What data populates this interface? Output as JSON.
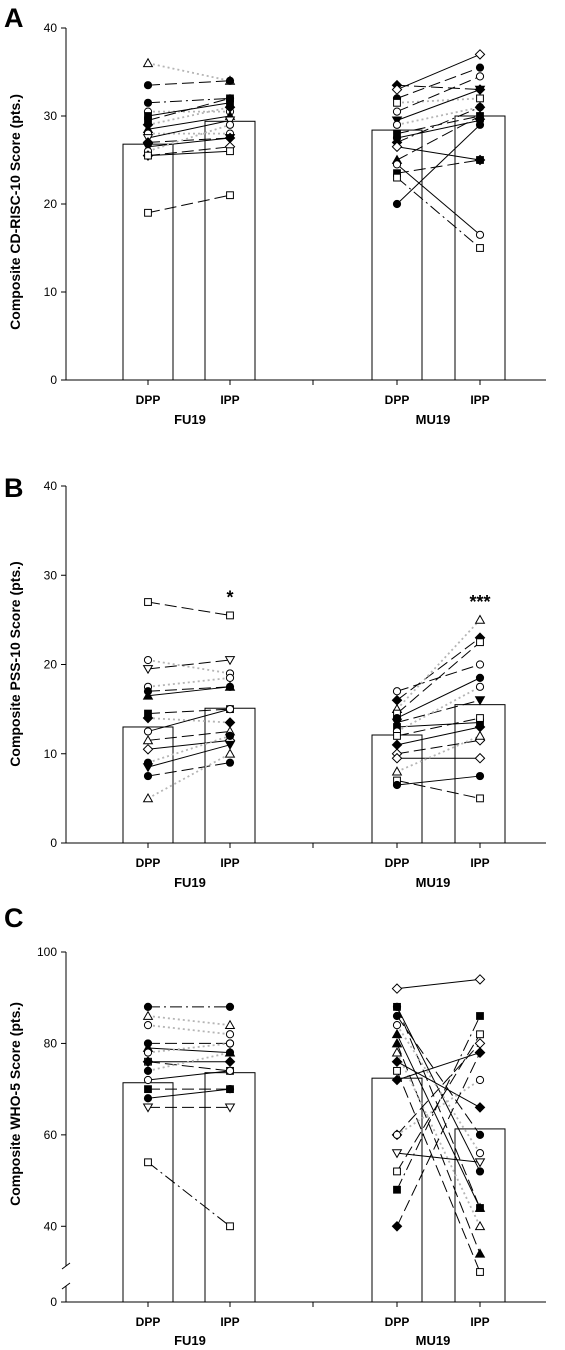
{
  "panels": [
    {
      "letter": "A",
      "ylabel": "Composite CD-RISC-10 Score (pts.)",
      "ylim": [
        0,
        40
      ],
      "yticks": [
        0,
        10,
        20,
        30,
        40
      ],
      "axis_break": false,
      "categories": [
        "DPP",
        "IPP",
        "DPP",
        "IPP"
      ],
      "groups": [
        "FU19",
        "MU19"
      ],
      "bars": [
        26.8,
        29.4,
        28.4,
        30.0
      ],
      "significance": [
        "",
        "",
        "",
        ""
      ],
      "fu_pairs": [
        {
          "pre": 36,
          "post": 34,
          "marker": "triangle-open",
          "line": "dotted"
        },
        {
          "pre": 33.5,
          "post": 34,
          "marker": "circle-filled",
          "line": "dashed"
        },
        {
          "pre": 31.5,
          "post": 32,
          "marker": "circle-filled",
          "line": "dashdot"
        },
        {
          "pre": 30.5,
          "post": 30.5,
          "marker": "circle-open",
          "line": "dotted"
        },
        {
          "pre": 30,
          "post": 31.5,
          "marker": "square-filled",
          "line": "solid"
        },
        {
          "pre": 29.5,
          "post": 32,
          "marker": "square-filled",
          "line": "dashed"
        },
        {
          "pre": 29,
          "post": 31,
          "marker": "diamond-filled",
          "line": "dotted"
        },
        {
          "pre": 28.5,
          "post": 30,
          "marker": "triangle-filled",
          "line": "solid"
        },
        {
          "pre": 28,
          "post": 28,
          "marker": "circle-open",
          "line": "dotted"
        },
        {
          "pre": 27.5,
          "post": 29.5,
          "marker": "triangle-down-open",
          "line": "solid"
        },
        {
          "pre": 27,
          "post": 27.5,
          "marker": "diamond-filled",
          "line": "dashed"
        },
        {
          "pre": 26.5,
          "post": 27.5,
          "marker": "triangle-down-filled",
          "line": "solid"
        },
        {
          "pre": 26,
          "post": 29,
          "marker": "circle-open",
          "line": "dotted"
        },
        {
          "pre": 25.5,
          "post": 26.5,
          "marker": "diamond-open",
          "line": "dashed"
        },
        {
          "pre": 25.5,
          "post": 26,
          "marker": "square-open",
          "line": "solid"
        },
        {
          "pre": 19,
          "post": 21,
          "marker": "square-open",
          "line": "dashed"
        }
      ],
      "mu_pairs": [
        {
          "pre": 33.5,
          "post": 33,
          "marker": "diamond-filled",
          "line": "dashed"
        },
        {
          "pre": 33,
          "post": 37,
          "marker": "diamond-open",
          "line": "solid"
        },
        {
          "pre": 32,
          "post": 35.5,
          "marker": "circle-filled",
          "line": "dashed"
        },
        {
          "pre": 31.5,
          "post": 32,
          "marker": "square-open",
          "line": "dotted"
        },
        {
          "pre": 30.5,
          "post": 34.5,
          "marker": "circle-open",
          "line": "dashed"
        },
        {
          "pre": 29.5,
          "post": 33,
          "marker": "triangle-down-filled",
          "line": "solid"
        },
        {
          "pre": 29,
          "post": 31,
          "marker": "circle-open",
          "line": "dotted"
        },
        {
          "pre": 28,
          "post": 30,
          "marker": "square-filled",
          "line": "dashed"
        },
        {
          "pre": 27.5,
          "post": 29.5,
          "marker": "circle-filled",
          "line": "solid"
        },
        {
          "pre": 27,
          "post": 31,
          "marker": "diamond-filled",
          "line": "dashdot"
        },
        {
          "pre": 26.5,
          "post": 25,
          "marker": "diamond-open",
          "line": "solid"
        },
        {
          "pre": 25,
          "post": 30,
          "marker": "triangle-filled",
          "line": "dashed"
        },
        {
          "pre": 24.5,
          "post": 16.5,
          "marker": "circle-open",
          "line": "solid"
        },
        {
          "pre": 23.5,
          "post": 25,
          "marker": "square-filled",
          "line": "dashed"
        },
        {
          "pre": 23,
          "post": 15,
          "marker": "square-open",
          "line": "dashdot"
        },
        {
          "pre": 20,
          "post": 29,
          "marker": "circle-filled",
          "line": "solid"
        }
      ]
    },
    {
      "letter": "B",
      "ylabel": "Composite PSS-10 Score (pts.)",
      "ylim": [
        0,
        40
      ],
      "yticks": [
        0,
        10,
        20,
        30,
        40
      ],
      "axis_break": false,
      "categories": [
        "DPP",
        "IPP",
        "DPP",
        "IPP"
      ],
      "groups": [
        "FU19",
        "MU19"
      ],
      "bars": [
        13.0,
        15.1,
        12.1,
        15.5
      ],
      "significance": [
        "",
        "*",
        "",
        "***"
      ],
      "fu_pairs": [
        {
          "pre": 27,
          "post": 25.5,
          "marker": "square-open",
          "line": "dashed"
        },
        {
          "pre": 20.5,
          "post": 19,
          "marker": "circle-open",
          "line": "dotted"
        },
        {
          "pre": 19.5,
          "post": 20.5,
          "marker": "triangle-down-open",
          "line": "dashed"
        },
        {
          "pre": 17.5,
          "post": 18.5,
          "marker": "circle-open",
          "line": "dotted"
        },
        {
          "pre": 17,
          "post": 17.5,
          "marker": "circle-filled",
          "line": "dashed"
        },
        {
          "pre": 16.5,
          "post": 17.5,
          "marker": "triangle-filled",
          "line": "solid"
        },
        {
          "pre": 14.5,
          "post": 15,
          "marker": "square-filled",
          "line": "dashed"
        },
        {
          "pre": 14,
          "post": 13.5,
          "marker": "diamond-filled",
          "line": "dotted"
        },
        {
          "pre": 12.5,
          "post": 15,
          "marker": "circle-open",
          "line": "solid"
        },
        {
          "pre": 11.5,
          "post": 12.5,
          "marker": "triangle-open",
          "line": "dashed"
        },
        {
          "pre": 10.5,
          "post": 11.5,
          "marker": "diamond-open",
          "line": "solid"
        },
        {
          "pre": 9,
          "post": 12,
          "marker": "circle-filled",
          "line": "dotted"
        },
        {
          "pre": 8.5,
          "post": 11,
          "marker": "triangle-down-filled",
          "line": "solid"
        },
        {
          "pre": 7.5,
          "post": 9,
          "marker": "circle-filled",
          "line": "dashed"
        },
        {
          "pre": 5,
          "post": 10,
          "marker": "triangle-open",
          "line": "dotted"
        }
      ],
      "mu_pairs": [
        {
          "pre": 17,
          "post": 20,
          "marker": "circle-open",
          "line": "dashed"
        },
        {
          "pre": 16,
          "post": 23,
          "marker": "diamond-filled",
          "line": "dashed"
        },
        {
          "pre": 15,
          "post": 25,
          "marker": "triangle-open",
          "line": "dotted"
        },
        {
          "pre": 14.5,
          "post": 22.5,
          "marker": "square-open",
          "line": "dashed"
        },
        {
          "pre": 14,
          "post": 18.5,
          "marker": "circle-filled",
          "line": "solid"
        },
        {
          "pre": 13.5,
          "post": 16,
          "marker": "triangle-down-filled",
          "line": "dashed"
        },
        {
          "pre": 13,
          "post": 13.5,
          "marker": "square-filled",
          "line": "solid"
        },
        {
          "pre": 12.5,
          "post": 17.5,
          "marker": "circle-open",
          "line": "dotted"
        },
        {
          "pre": 12,
          "post": 14,
          "marker": "square-open",
          "line": "dashed"
        },
        {
          "pre": 11,
          "post": 13,
          "marker": "diamond-filled",
          "line": "solid"
        },
        {
          "pre": 10,
          "post": 11.5,
          "marker": "diamond-open",
          "line": "dashed"
        },
        {
          "pre": 9.5,
          "post": 9.5,
          "marker": "diamond-open",
          "line": "solid"
        },
        {
          "pre": 8,
          "post": 12,
          "marker": "triangle-open",
          "line": "dotted"
        },
        {
          "pre": 7,
          "post": 5,
          "marker": "square-open",
          "line": "dashed"
        },
        {
          "pre": 6.5,
          "post": 7.5,
          "marker": "circle-filled",
          "line": "solid"
        }
      ]
    },
    {
      "letter": "C",
      "ylabel": "Composite WHO-5 Score (pts.)",
      "ylim": [
        0,
        100
      ],
      "yticks": [
        0,
        40,
        60,
        80,
        100
      ],
      "axis_break": true,
      "categories": [
        "DPP",
        "IPP",
        "DPP",
        "IPP"
      ],
      "groups": [
        "FU19",
        "MU19"
      ],
      "bars": [
        71.4,
        73.6,
        72.4,
        61.3
      ],
      "significance": [
        "",
        "",
        "",
        ""
      ],
      "fu_pairs": [
        {
          "pre": 88,
          "post": 88,
          "marker": "circle-filled",
          "line": "dashdot"
        },
        {
          "pre": 86,
          "post": 84,
          "marker": "triangle-open",
          "line": "dotted"
        },
        {
          "pre": 84,
          "post": 82,
          "marker": "circle-open",
          "line": "dotted"
        },
        {
          "pre": 80,
          "post": 80,
          "marker": "circle-filled",
          "line": "dashed"
        },
        {
          "pre": 79,
          "post": 78,
          "marker": "triangle-filled",
          "line": "solid"
        },
        {
          "pre": 78,
          "post": 80,
          "marker": "circle-open",
          "line": "dotted"
        },
        {
          "pre": 76,
          "post": 74,
          "marker": "square-open",
          "line": "dashed"
        },
        {
          "pre": 76,
          "post": 76,
          "marker": "diamond-filled",
          "line": "solid"
        },
        {
          "pre": 74,
          "post": 78,
          "marker": "circle-filled",
          "line": "dotted"
        },
        {
          "pre": 72,
          "post": 74,
          "marker": "circle-open",
          "line": "solid"
        },
        {
          "pre": 70,
          "post": 70,
          "marker": "square-filled",
          "line": "dashed"
        },
        {
          "pre": 68,
          "post": 70,
          "marker": "circle-filled",
          "line": "solid"
        },
        {
          "pre": 66,
          "post": 66,
          "marker": "triangle-down-open",
          "line": "dashed"
        },
        {
          "pre": 54,
          "post": 40,
          "marker": "square-open",
          "line": "dashdot"
        }
      ],
      "mu_pairs": [
        {
          "pre": 92,
          "post": 94,
          "marker": "diamond-open",
          "line": "solid"
        },
        {
          "pre": 88,
          "post": 44,
          "marker": "square-filled",
          "line": "dashed"
        },
        {
          "pre": 88,
          "post": 52,
          "marker": "circle-filled",
          "line": "solid"
        },
        {
          "pre": 86,
          "post": 60,
          "marker": "circle-filled",
          "line": "dashed"
        },
        {
          "pre": 84,
          "post": 56,
          "marker": "circle-open",
          "line": "dotted"
        },
        {
          "pre": 82,
          "post": 44,
          "marker": "triangle-filled",
          "line": "solid"
        },
        {
          "pre": 80,
          "post": 34,
          "marker": "triangle-filled",
          "line": "dashed"
        },
        {
          "pre": 78,
          "post": 40,
          "marker": "triangle-open",
          "line": "dotted"
        },
        {
          "pre": 76,
          "post": 66,
          "marker": "diamond-filled",
          "line": "solid"
        },
        {
          "pre": 74,
          "post": 30,
          "marker": "square-open",
          "line": "dashed"
        },
        {
          "pre": 72,
          "post": 78,
          "marker": "diamond-filled",
          "line": "solid"
        },
        {
          "pre": 60,
          "post": 80,
          "marker": "diamond-open",
          "line": "dashed"
        },
        {
          "pre": 60,
          "post": 72,
          "marker": "circle-open",
          "line": "dotted"
        },
        {
          "pre": 56,
          "post": 54,
          "marker": "triangle-down-open",
          "line": "solid"
        },
        {
          "pre": 52,
          "post": 82,
          "marker": "square-open",
          "line": "dashed"
        },
        {
          "pre": 48,
          "post": 86,
          "marker": "square-filled",
          "line": "dashdot"
        },
        {
          "pre": 40,
          "post": 78,
          "marker": "diamond-filled",
          "line": "dashed"
        }
      ]
    }
  ],
  "chart_data": [
    {
      "type": "bar",
      "title": "",
      "ylabel": "Composite CD-RISC-10 Score (pts.)",
      "ylim": [
        0,
        40
      ],
      "categories": [
        "FU19 DPP",
        "FU19 IPP",
        "MU19 DPP",
        "MU19 IPP"
      ],
      "values": [
        26.8,
        29.4,
        28.4,
        30.0
      ]
    },
    {
      "type": "bar",
      "title": "",
      "ylabel": "Composite PSS-10 Score (pts.)",
      "ylim": [
        0,
        40
      ],
      "categories": [
        "FU19 DPP",
        "FU19 IPP",
        "MU19 DPP",
        "MU19 IPP"
      ],
      "values": [
        13.0,
        15.1,
        12.1,
        15.5
      ],
      "annotations": [
        "*",
        "***"
      ]
    },
    {
      "type": "bar",
      "title": "",
      "ylabel": "Composite WHO-5 Score (pts.)",
      "ylim": [
        0,
        100
      ],
      "categories": [
        "FU19 DPP",
        "FU19 IPP",
        "MU19 DPP",
        "MU19 IPP"
      ],
      "values": [
        71.4,
        73.6,
        72.4,
        61.3
      ]
    }
  ]
}
